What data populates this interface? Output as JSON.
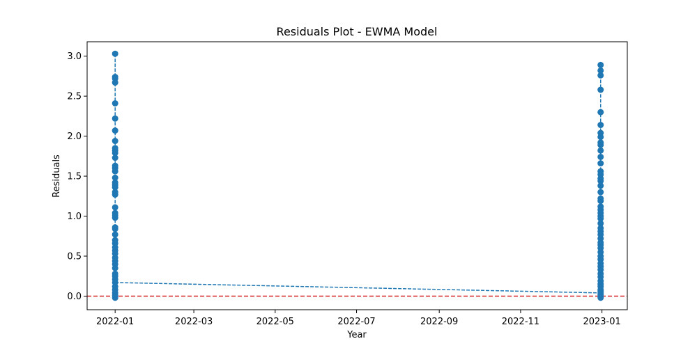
{
  "chart_data": {
    "type": "line",
    "title": "Residuals Plot - EWMA Model",
    "xlabel": "Year",
    "ylabel": "Residuals",
    "xlim": [
      "2021-12-11",
      "2023-01-20"
    ],
    "ylim": [
      -0.17,
      3.18
    ],
    "x_ticks": [
      "2022-01-01",
      "2022-03-01",
      "2022-05-01",
      "2022-07-01",
      "2022-09-01",
      "2022-11-01",
      "2023-01-01"
    ],
    "x_tick_labels": [
      "2022-01",
      "2022-03",
      "2022-05",
      "2022-07",
      "2022-09",
      "2022-11",
      "2023-01"
    ],
    "y_ticks": [
      0.0,
      0.5,
      1.0,
      1.5,
      2.0,
      2.5,
      3.0
    ],
    "y_tick_labels": [
      "0.0",
      "0.5",
      "1.0",
      "1.5",
      "2.0",
      "2.5",
      "3.0"
    ],
    "grid": false,
    "reference_line": {
      "y": 0,
      "color": "#d62728",
      "style": "dashed"
    },
    "series": [
      {
        "color": "#1f77b4",
        "style": "dashed",
        "marker": "circle",
        "clusters": [
          {
            "date": "2022-01-01",
            "values": [
              3.03,
              2.74,
              2.72,
              2.67,
              2.41,
              2.22,
              2.07,
              1.94,
              1.85,
              1.82,
              1.79,
              1.73,
              1.63,
              1.6,
              1.56,
              1.48,
              1.42,
              1.39,
              1.36,
              1.3,
              1.27,
              1.11,
              1.04,
              1.01,
              0.98,
              0.86,
              0.84,
              0.77,
              0.7,
              0.66,
              0.61,
              0.57,
              0.53,
              0.48,
              0.44,
              0.4,
              0.35,
              0.28,
              0.25,
              0.21,
              0.17,
              0.12,
              0.08,
              0.04,
              0.01,
              -0.02
            ]
          },
          {
            "date": "2022-12-31",
            "values": [
              2.89,
              2.82,
              2.76,
              2.58,
              2.3,
              2.14,
              2.04,
              1.99,
              1.92,
              1.89,
              1.82,
              1.74,
              1.66,
              1.56,
              1.52,
              1.47,
              1.44,
              1.38,
              1.3,
              1.22,
              1.19,
              1.12,
              1.08,
              1.04,
              1.0,
              0.97,
              0.91,
              0.85,
              0.81,
              0.77,
              0.72,
              0.67,
              0.64,
              0.6,
              0.55,
              0.5,
              0.46,
              0.41,
              0.37,
              0.33,
              0.28,
              0.24,
              0.19,
              0.15,
              0.12,
              0.08,
              0.06,
              0.04,
              0.02,
              0.0,
              -0.02
            ]
          }
        ]
      }
    ]
  }
}
